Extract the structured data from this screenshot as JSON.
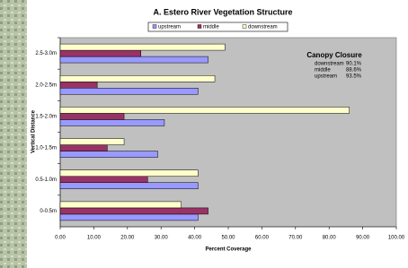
{
  "chart_data": {
    "type": "hbar",
    "title": "A.  Estero River Vegetation Structure",
    "x_label": "Percent Coverage",
    "y_label": "Vertical Distance",
    "categories": [
      "2.5-3.0m",
      "2.0-2.5m",
      "1.5-2.0m",
      "1.0-1.5m",
      "0.5-1.0m",
      "0-0.5m"
    ],
    "series": [
      {
        "name": "upstream",
        "color": "#9999ff",
        "values": [
          44,
          41,
          31,
          29,
          41,
          41
        ]
      },
      {
        "name": "middle",
        "color": "#993366",
        "values": [
          24,
          11,
          19,
          14,
          26,
          44
        ]
      },
      {
        "name": "downstream",
        "color": "#ffffcc",
        "values": [
          49,
          46,
          86,
          19,
          41,
          36
        ]
      }
    ],
    "xlim": [
      0,
      100
    ],
    "xticks": [
      {
        "value": 0,
        "label": "0.00"
      },
      {
        "value": 10,
        "label": "10.00"
      },
      {
        "value": 20,
        "label": "20.00"
      },
      {
        "value": 30,
        "label": "30.00"
      },
      {
        "value": 40,
        "label": "40.00"
      },
      {
        "value": 50,
        "label": "50.00"
      },
      {
        "value": 60,
        "label": "60.00"
      },
      {
        "value": 70,
        "label": "70.00"
      },
      {
        "value": 80,
        "label": "80.00"
      },
      {
        "value": 90,
        "label": "90.00"
      },
      {
        "value": 100,
        "label": "100.00"
      }
    ],
    "annotation": {
      "title": "Canopy Closure",
      "rows": [
        {
          "label": "downstream",
          "value": "90.1%"
        },
        {
          "label": "middle",
          "value": "88.6%"
        },
        {
          "label": "upstream",
          "value": "93.5%"
        }
      ]
    }
  }
}
